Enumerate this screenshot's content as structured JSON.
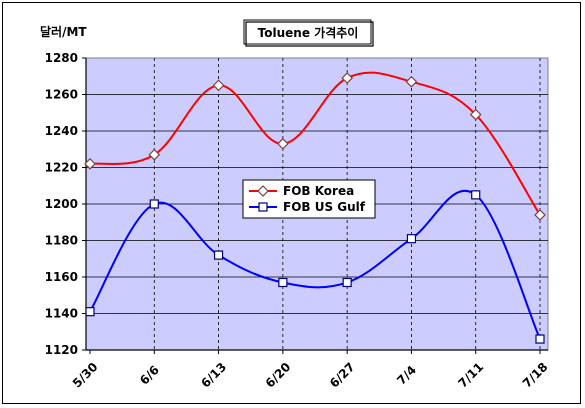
{
  "chart_data": {
    "type": "line",
    "title": "Toluene 가격추이",
    "unit_label": "달러/MT",
    "categories": [
      "5/30",
      "6/6",
      "6/13",
      "6/20",
      "6/27",
      "7/4",
      "7/11",
      "7/18"
    ],
    "ylim": [
      1120,
      1280
    ],
    "yticks": [
      1120,
      1140,
      1160,
      1180,
      1200,
      1220,
      1240,
      1260,
      1280
    ],
    "grid": true,
    "legend_position": "center",
    "series": [
      {
        "name": "FOB Korea",
        "color": "#ff0000",
        "marker": "diamond",
        "values": [
          1222,
          1227,
          1265,
          1233,
          1269,
          1267,
          1249,
          1194
        ]
      },
      {
        "name": "FOB US Gulf",
        "color": "#0000ff",
        "marker": "square",
        "values": [
          1141,
          1200,
          1172,
          1157,
          1157,
          1181,
          1205,
          1126
        ]
      }
    ],
    "plot_background": "#ccccff"
  }
}
